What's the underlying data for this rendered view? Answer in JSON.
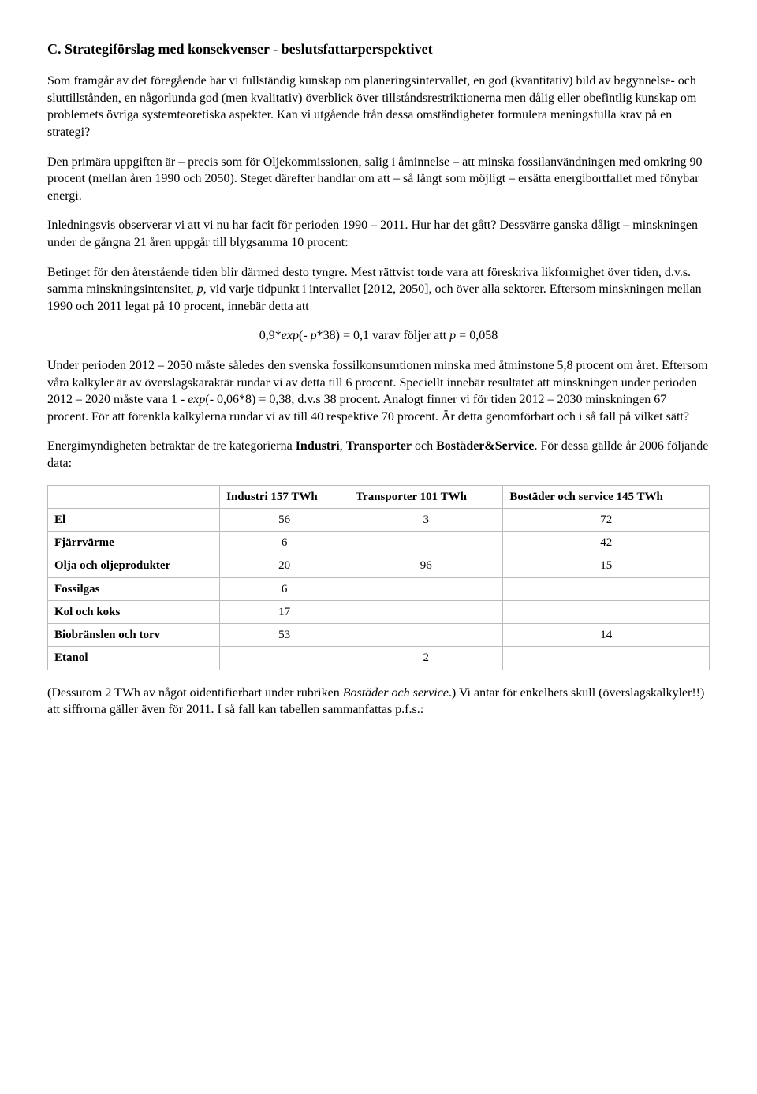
{
  "heading": "C. Strategiförslag med konsekvenser - beslutsfattarperspektivet",
  "p1a": "Som framgår av det föregående har vi fullständig kunskap om planeringsintervallet, en god (kvantitativ) bild av begynnelse- och sluttillstånden, en någorlunda god (men kvalitativ) överblick över tillståndsrestriktionerna men dålig eller obefintlig kunskap om problemets övriga systemteoretiska aspekter. Kan vi utgående från dessa omständigheter formulera meningsfulla krav på en strategi?",
  "p2a": "Den primära uppgiften är – precis som för Oljekommissionen, salig i åminnelse – att minska fossilanvändningen med omkring 90 procent (mellan åren 1990 och 2050). Steget därefter handlar om att – så långt som möjligt – ersätta energibortfallet med fönybar energi.",
  "p3a": "Inledningsvis observerar vi att vi nu har facit för perioden 1990 – 2011. Hur har det gått? Dessvärre ganska dåligt – minskningen under de gångna 21 åren uppgår till blygsamma 10 procent:",
  "p4a": "Betinget för den återstående tiden blir därmed desto tyngre. Mest rättvist torde vara att föreskriva likformighet över tiden, d.v.s. samma minskningsintensitet, ",
  "p4b": "p",
  "p4c": ", vid varje tidpunkt i intervallet [2012, 2050], och över alla sektorer. Eftersom minskningen mellan 1990 och 2011 legat på 10 procent, innebär detta att",
  "eq_a": "0,9*",
  "eq_b": "exp",
  "eq_c": "(- ",
  "eq_d": "p",
  "eq_e": "*38) = 0,1 varav följer att ",
  "eq_f": "p",
  "eq_g": " = 0,058",
  "p5a": "Under perioden 2012 – 2050 måste således den svenska fossilkonsumtionen minska med åtminstone 5,8 procent om året. Eftersom våra kalkyler är av överslagskaraktär rundar vi av detta till 6 procent. Speciellt innebär resultatet att minskningen under perioden 2012 – 2020 måste vara 1 - ",
  "p5b": "exp",
  "p5c": "(- 0,06*8) = 0,38, d.v.s 38 procent. Analogt finner vi för tiden 2012 – 2030 minskningen 67 procent. För att förenkla kalkylerna rundar vi av till 40 respektive 70 procent. Är detta genomförbart och i så fall på vilket sätt?",
  "p6a": "Energimyndigheten betraktar de tre kategorierna ",
  "p6b": "Industri",
  "p6c": ", ",
  "p6d": "Transporter",
  "p6e": " och ",
  "p6f": "Bostäder&Service",
  "p6g": ". För dessa gällde år 2006 följande data:",
  "table": {
    "header": [
      "",
      "Industri 157 TWh",
      "Transporter 101 TWh",
      "Bostäder och service 145 TWh"
    ],
    "rows": [
      [
        "El",
        "56",
        "3",
        "72"
      ],
      [
        "Fjärrvärme",
        "6",
        "",
        "42"
      ],
      [
        "Olja och oljeprodukter",
        "20",
        "96",
        "15"
      ],
      [
        "Fossilgas",
        "6",
        "",
        ""
      ],
      [
        "Kol och koks",
        "17",
        "",
        ""
      ],
      [
        "Biobränslen och torv",
        "53",
        "",
        "14"
      ],
      [
        "Etanol",
        "",
        "2",
        ""
      ]
    ]
  },
  "p7a": "(Dessutom 2 TWh av något oidentifierbart under rubriken ",
  "p7b": "Bostäder och service",
  "p7c": ".) Vi antar för enkelhets skull (överslagskalkyler!!) att siffrorna gäller även för 2011. I så fall kan tabellen sammanfattas p.f.s.:"
}
